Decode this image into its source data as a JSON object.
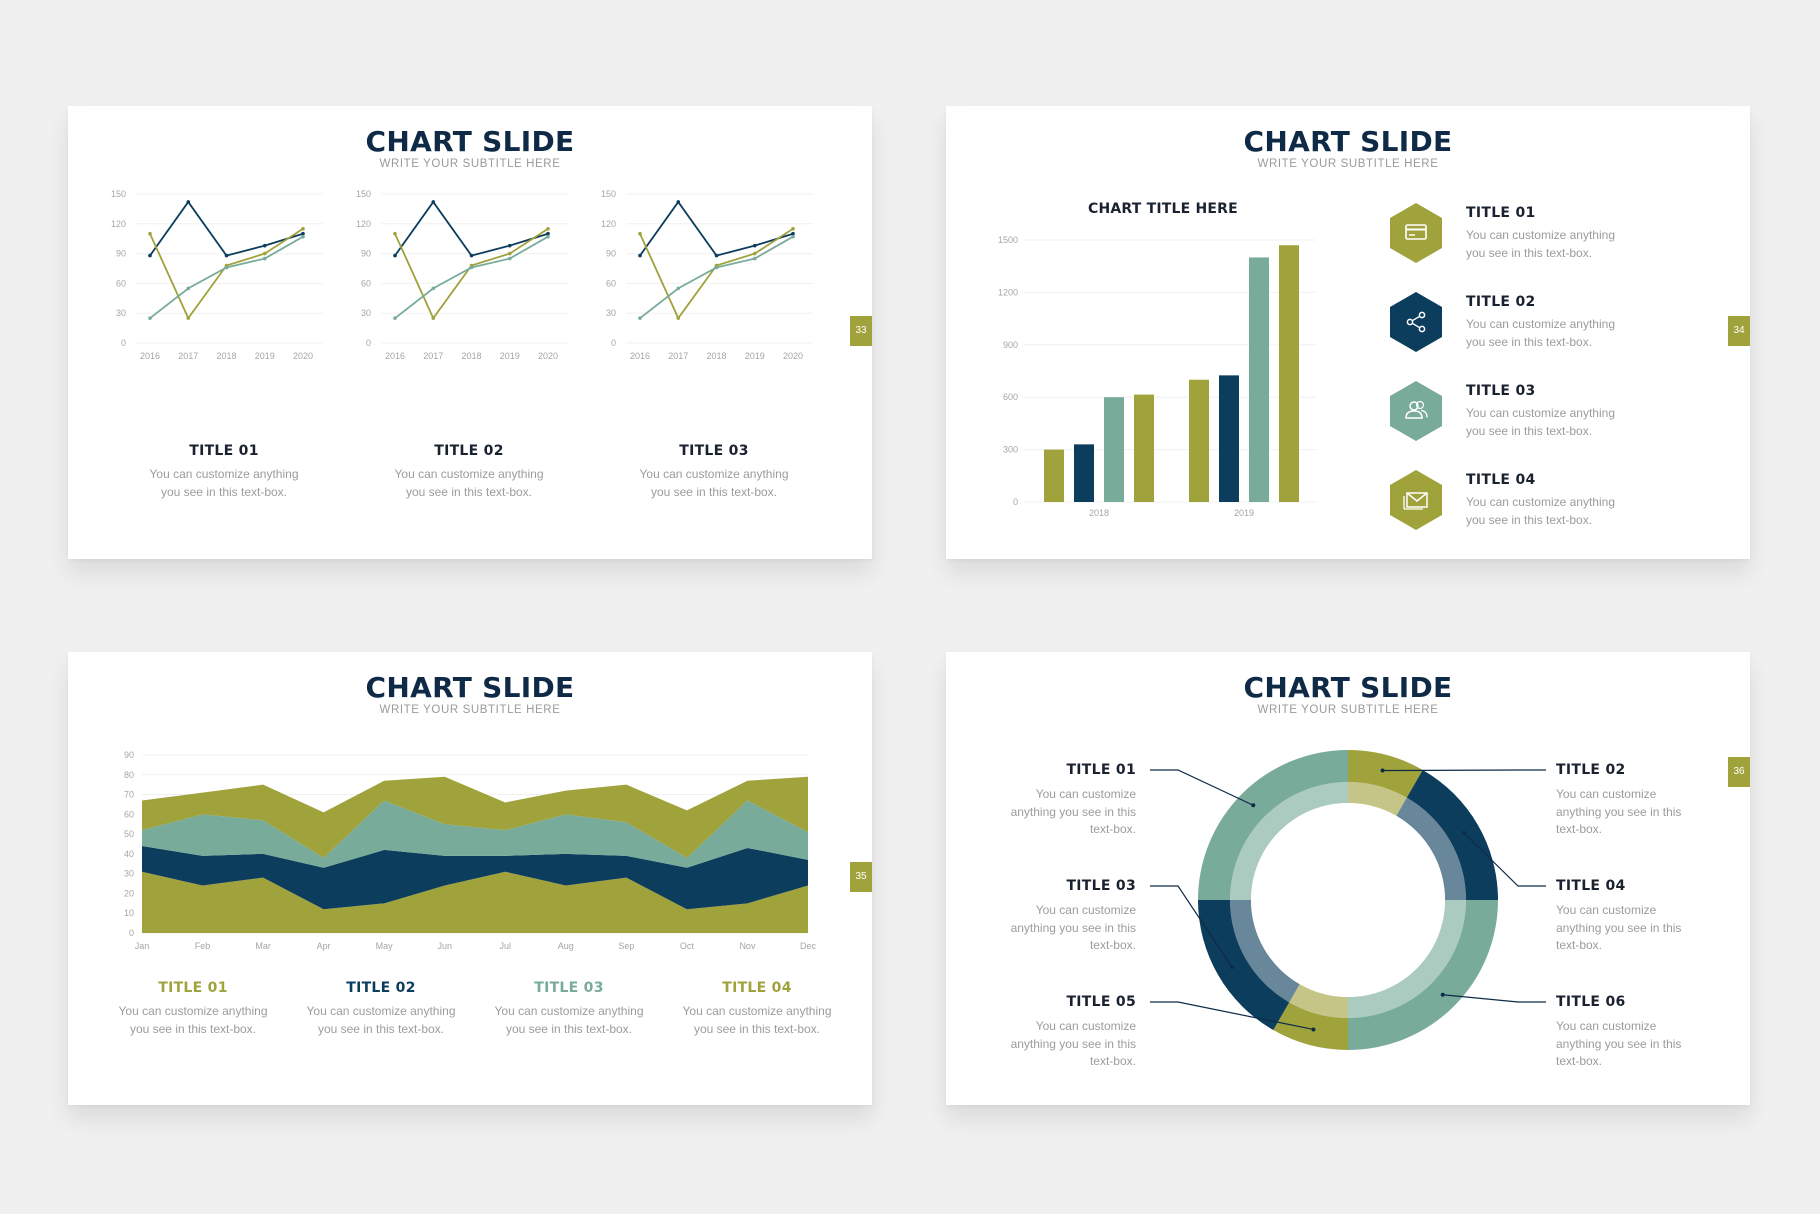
{
  "colors": {
    "olive": "#a0a23c",
    "navy": "#0c3d5c",
    "teal": "#78ab9a",
    "dark": "#0f2a46"
  },
  "slides": [
    {
      "title": "CHART SLIDE",
      "subtitle": "WRITE YOUR SUBTITLE HERE",
      "page": "33",
      "items": [
        {
          "title": "TITLE 01",
          "desc": "You can customize anything you see in this text-box."
        },
        {
          "title": "TITLE 02",
          "desc": "You can customize anything you see in this text-box."
        },
        {
          "title": "TITLE 03",
          "desc": "You can customize anything you see in this text-box."
        }
      ]
    },
    {
      "title": "CHART SLIDE",
      "subtitle": "WRITE YOUR SUBTITLE HERE",
      "page": "34",
      "chart_title": "CHART TITLE HERE",
      "items": [
        {
          "title": "TITLE 01",
          "desc": "You can customize anything you see in this text-box.",
          "icon": "credit-card-icon"
        },
        {
          "title": "TITLE 02",
          "desc": "You can customize anything you see in this text-box.",
          "icon": "share-icon"
        },
        {
          "title": "TITLE 03",
          "desc": "You can customize anything you see in this text-box.",
          "icon": "users-icon"
        },
        {
          "title": "TITLE 04",
          "desc": "You can customize anything you see in this text-box.",
          "icon": "mail-icon"
        }
      ]
    },
    {
      "title": "CHART SLIDE",
      "subtitle": "WRITE YOUR SUBTITLE HERE",
      "page": "35",
      "items": [
        {
          "title": "TITLE 01",
          "desc": "You can customize anything you see in this text-box."
        },
        {
          "title": "TITLE 02",
          "desc": "You can customize anything you see in this text-box."
        },
        {
          "title": "TITLE 03",
          "desc": "You can customize anything you see in this text-box."
        },
        {
          "title": "TITLE 04",
          "desc": "You can customize anything you see in this text-box."
        }
      ]
    },
    {
      "title": "CHART SLIDE",
      "subtitle": "WRITE YOUR SUBTITLE HERE",
      "page": "36",
      "items": [
        {
          "title": "TITLE 01",
          "desc": "You can customize anything you see in this text-box."
        },
        {
          "title": "TITLE 02",
          "desc": "You can customize anything you see in this text-box."
        },
        {
          "title": "TITLE 03",
          "desc": "You can customize anything you see in this text-box."
        },
        {
          "title": "TITLE 04",
          "desc": "You can customize anything you see in this text-box."
        },
        {
          "title": "TITLE 05",
          "desc": "You can customize anything you see in this text-box."
        },
        {
          "title": "TITLE 06",
          "desc": "You can customize anything you see in this text-box."
        }
      ]
    }
  ],
  "chart_data": [
    {
      "type": "line",
      "x": [
        "2016",
        "2017",
        "2018",
        "2019",
        "2020"
      ],
      "ylim": [
        0,
        150
      ],
      "yticks": [
        0,
        30,
        60,
        90,
        120,
        150
      ],
      "series": [
        {
          "color": "#0c3d5c",
          "values": [
            88,
            142,
            88,
            98,
            110
          ]
        },
        {
          "color": "#a0a23c",
          "values": [
            110,
            25,
            78,
            90,
            115
          ]
        },
        {
          "color": "#78ab9a",
          "values": [
            25,
            55,
            76,
            85,
            107
          ]
        }
      ]
    },
    {
      "type": "line",
      "x": [
        "2016",
        "2017",
        "2018",
        "2019",
        "2020"
      ],
      "ylim": [
        0,
        150
      ],
      "yticks": [
        0,
        30,
        60,
        90,
        120,
        150
      ],
      "series": [
        {
          "color": "#0c3d5c",
          "values": [
            88,
            142,
            88,
            98,
            110
          ]
        },
        {
          "color": "#a0a23c",
          "values": [
            110,
            25,
            78,
            90,
            115
          ]
        },
        {
          "color": "#78ab9a",
          "values": [
            25,
            55,
            76,
            85,
            107
          ]
        }
      ]
    },
    {
      "type": "line",
      "x": [
        "2016",
        "2017",
        "2018",
        "2019",
        "2020"
      ],
      "ylim": [
        0,
        150
      ],
      "yticks": [
        0,
        30,
        60,
        90,
        120,
        150
      ],
      "series": [
        {
          "color": "#0c3d5c",
          "values": [
            88,
            142,
            88,
            98,
            110
          ]
        },
        {
          "color": "#a0a23c",
          "values": [
            110,
            25,
            78,
            90,
            115
          ]
        },
        {
          "color": "#78ab9a",
          "values": [
            25,
            55,
            76,
            85,
            107
          ]
        }
      ]
    },
    {
      "type": "bar",
      "title": "CHART TITLE HERE",
      "categories": [
        "2018",
        "2019"
      ],
      "ylim": [
        0,
        1500
      ],
      "yticks": [
        0,
        300,
        600,
        900,
        1200,
        1500
      ],
      "series": [
        {
          "color": "#a0a23c",
          "values": [
            300,
            700
          ]
        },
        {
          "color": "#0c3d5c",
          "values": [
            330,
            725
          ]
        },
        {
          "color": "#78ab9a",
          "values": [
            600,
            1400
          ]
        },
        {
          "color": "#a0a23c",
          "values": [
            615,
            1470
          ]
        }
      ]
    },
    {
      "type": "area",
      "stacked": true,
      "x": [
        "Jan",
        "Feb",
        "Mar",
        "Apr",
        "May",
        "Jun",
        "Jul",
        "Aug",
        "Sep",
        "Oct",
        "Nov",
        "Dec"
      ],
      "ylim": [
        0,
        90
      ],
      "yticks": [
        0,
        10,
        20,
        30,
        40,
        50,
        60,
        70,
        80,
        90
      ],
      "series": [
        {
          "color": "#a0a23c",
          "values": [
            31,
            24,
            28,
            12,
            15,
            24,
            31,
            24,
            28,
            12,
            15,
            24
          ]
        },
        {
          "color": "#0c3d5c",
          "values": [
            13,
            15,
            12,
            21,
            27,
            15,
            8,
            16,
            11,
            21,
            28,
            13
          ]
        },
        {
          "color": "#78ab9a",
          "values": [
            8,
            21,
            17,
            5,
            25,
            16,
            13,
            20,
            17,
            5,
            24,
            14
          ]
        },
        {
          "color": "#a0a23c",
          "values": [
            15,
            11,
            18,
            23,
            10,
            24,
            14,
            12,
            19,
            24,
            10,
            28
          ]
        }
      ]
    },
    {
      "type": "pie",
      "donut": true,
      "labels": [
        "TITLE 02",
        "TITLE 04",
        "TITLE 06",
        "TITLE 05",
        "TITLE 03",
        "TITLE 01"
      ],
      "values": [
        8.3,
        16.7,
        25,
        8.3,
        16.7,
        25
      ],
      "colors": [
        "#a0a23c",
        "#0c3d5c",
        "#78ab9a",
        "#a0a23c",
        "#0c3d5c",
        "#78ab9a"
      ]
    }
  ]
}
